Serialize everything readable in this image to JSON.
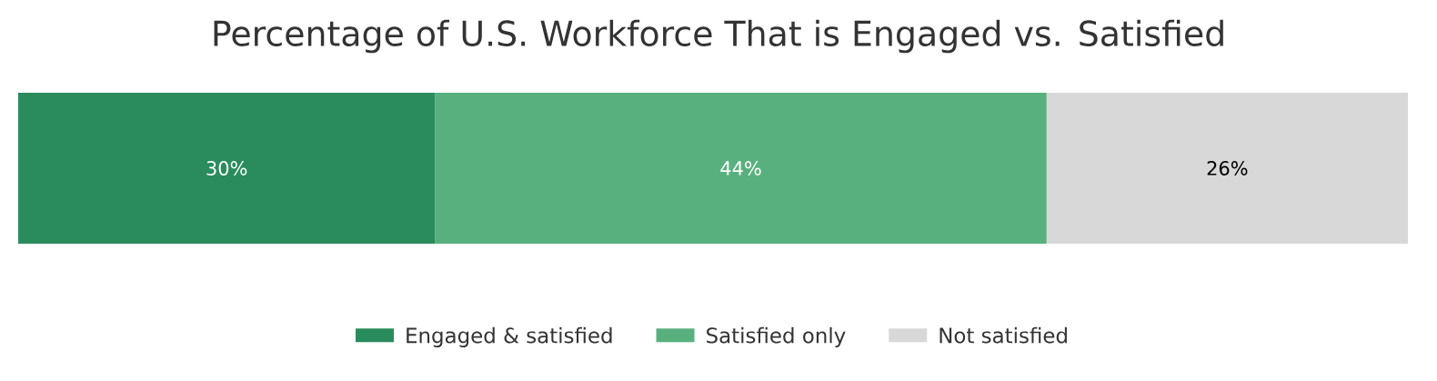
{
  "chart_data": {
    "type": "bar",
    "orientation": "horizontal",
    "stacked": true,
    "title": "Percentage of U.S. Workforce That is Engaged vs. Satisfied",
    "categories": [
      null
    ],
    "legend": "bottom",
    "series": [
      {
        "name": "Engaged & satisfied",
        "color": "#2a8c5c",
        "values": [
          30
        ],
        "value_labels": [
          "30%"
        ]
      },
      {
        "name": "Satisfied only",
        "color": "#59b07f",
        "values": [
          44
        ],
        "value_labels": [
          "44%"
        ]
      },
      {
        "name": "Not satisfied",
        "color": "#d8d8d8",
        "values": [
          26
        ],
        "value_labels": [
          "26%"
        ]
      }
    ]
  }
}
